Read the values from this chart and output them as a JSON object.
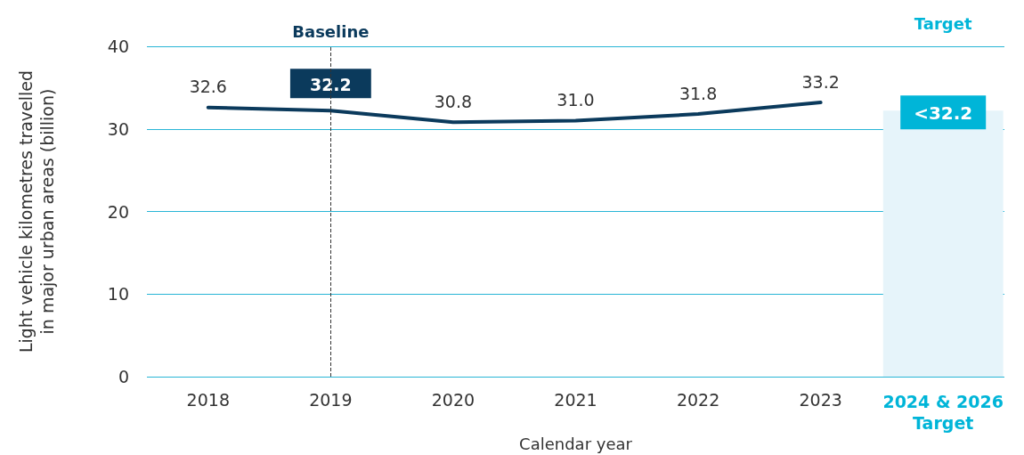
{
  "chart_data": {
    "type": "line",
    "xlabel": "Calendar year",
    "ylabel": "Light vehicle kilometres travelled in major urban areas (billion)",
    "categories": [
      "2018",
      "2019",
      "2020",
      "2021",
      "2022",
      "2023",
      "2024 & 2026 Target"
    ],
    "series": [
      {
        "color": "#0b3a5c",
        "values": [
          32.6,
          32.2,
          30.8,
          31.0,
          31.8,
          33.2,
          null
        ],
        "value_labels": [
          "32.6",
          "32.2",
          "30.8",
          "31.0",
          "31.8",
          "33.2",
          null
        ]
      },
      {
        "type": "bar",
        "color": "#e6f4fa",
        "values": [
          null,
          null,
          null,
          null,
          null,
          null,
          32.2
        ],
        "value_labels": [
          null,
          null,
          null,
          null,
          null,
          null,
          "<32.2"
        ]
      }
    ],
    "marker": "none",
    "line_style": "solid",
    "ylim": [
      0,
      40
    ],
    "yticks": [
      0,
      10,
      20,
      30,
      40
    ],
    "grid": "y",
    "ref_lines": [
      {
        "axis": "x",
        "value": "2019",
        "label": "Baseline",
        "color": "#333333",
        "line_style": "dashed"
      }
    ],
    "annotations": [
      "Target"
    ]
  }
}
